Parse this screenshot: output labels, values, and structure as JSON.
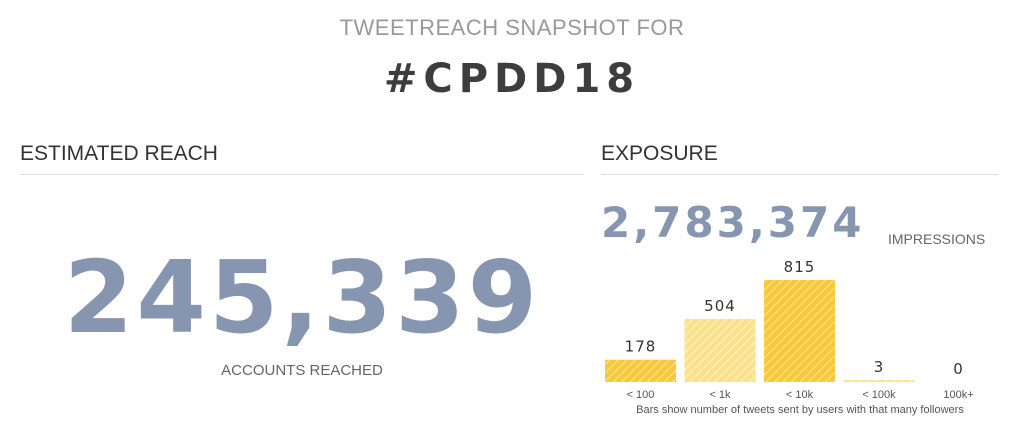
{
  "header": {
    "snapshot_label": "TWEETREACH SNAPSHOT FOR",
    "hashtag": "#CPDD18"
  },
  "reach": {
    "title": "ESTIMATED REACH",
    "value": "245,339",
    "label": "ACCOUNTS REACHED"
  },
  "exposure": {
    "title": "EXPOSURE",
    "value": "2,783,374",
    "label": "IMPRESSIONS"
  },
  "colors": {
    "accent_blue": "#8796b0",
    "bar_yellow": "#f7c93a",
    "bar_yellow_light": "#fbe28a"
  },
  "chart_data": {
    "type": "bar",
    "categories": [
      "< 100",
      "< 1k",
      "< 10k",
      "< 100k",
      "100k+"
    ],
    "values": [
      178,
      504,
      815,
      3,
      0
    ],
    "value_labels": [
      "178",
      "504",
      "815",
      "3",
      "0"
    ],
    "note": "Bars show number of tweets sent by users with that many followers",
    "ylim": [
      0,
      815
    ],
    "grid": false
  }
}
